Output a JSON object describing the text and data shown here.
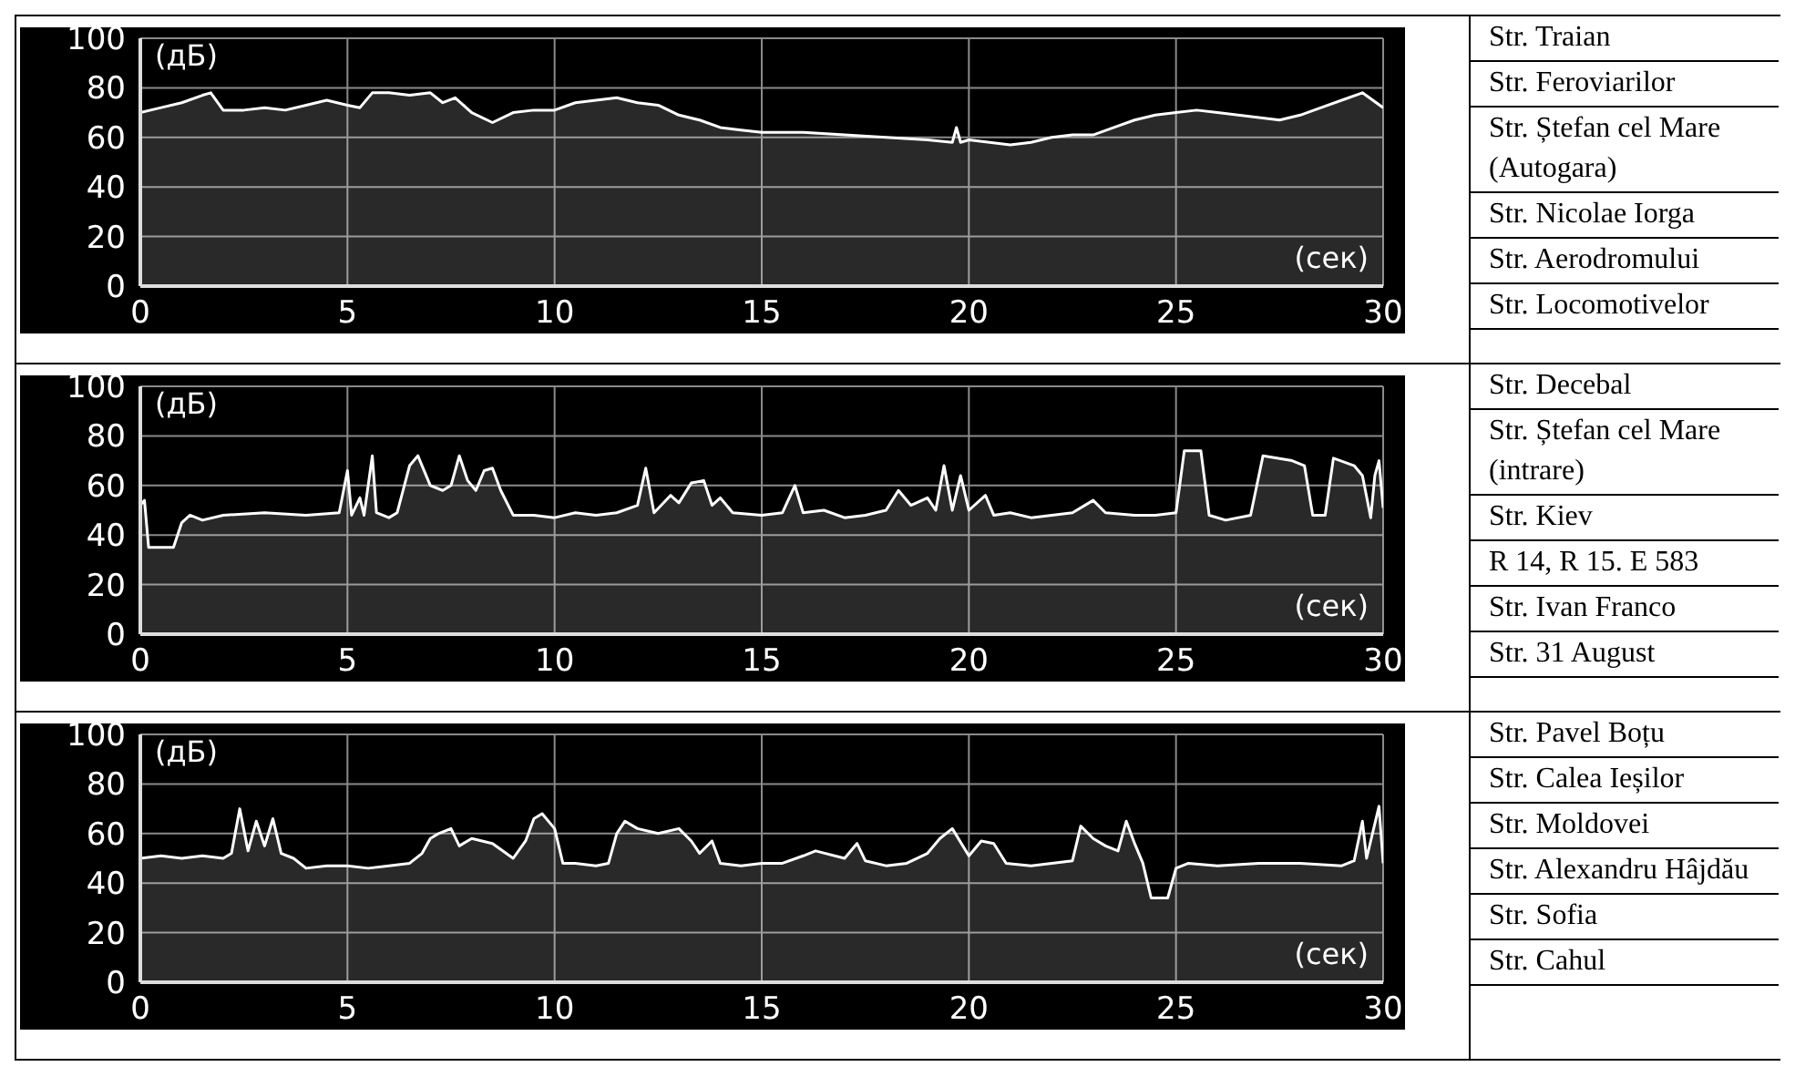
{
  "chart_data": [
    {
      "type": "area",
      "xlabel": "(сек)",
      "ylabel": "(дБ)",
      "color": "#ffffff",
      "grid": true,
      "xlim": [
        0,
        30
      ],
      "xticks": [
        0,
        5,
        10,
        15,
        20,
        25,
        30
      ],
      "ylim": [
        0,
        100
      ],
      "yticks": [
        0,
        20,
        40,
        60,
        80,
        100
      ],
      "x": [
        0,
        0.5,
        1,
        1.5,
        1.7,
        2,
        2.5,
        3,
        3.5,
        4,
        4.5,
        5,
        5.3,
        5.6,
        6,
        6.5,
        7,
        7.3,
        7.6,
        8,
        8.5,
        9,
        9.5,
        10,
        10.5,
        11,
        11.5,
        12,
        12.5,
        13,
        13.5,
        14,
        14.5,
        15,
        16,
        17,
        18,
        19,
        19.6,
        19.7,
        19.8,
        20,
        20.5,
        21,
        21.5,
        22,
        22.5,
        23,
        23.5,
        24,
        24.5,
        25,
        25.5,
        26,
        26.5,
        27,
        27.5,
        28,
        28.5,
        29,
        29.5,
        30
      ],
      "values": [
        70,
        72,
        74,
        77,
        78,
        71,
        71,
        72,
        71,
        73,
        75,
        73,
        72,
        78,
        78,
        77,
        78,
        74,
        76,
        70,
        66,
        70,
        71,
        71,
        74,
        75,
        76,
        74,
        73,
        69,
        67,
        64,
        63,
        62,
        62,
        61,
        60,
        59,
        58,
        64,
        58,
        59,
        58,
        57,
        58,
        60,
        61,
        61,
        64,
        67,
        69,
        70,
        71,
        70,
        69,
        68,
        67,
        69,
        72,
        75,
        78,
        72
      ]
    },
    {
      "type": "other",
      "annotations": [
        "Str. Traian",
        "Str. Feroviarilor",
        "Str. Ștefan cel Mare (Autogara)",
        "Str. Nicolae Iorga",
        "Str. Aerodromului",
        "Str. Locomotivelor"
      ]
    },
    {
      "type": "area",
      "xlabel": "(сек)",
      "ylabel": "(дБ)",
      "color": "#ffffff",
      "grid": true,
      "xlim": [
        0,
        30
      ],
      "xticks": [
        0,
        5,
        10,
        15,
        20,
        25,
        30
      ],
      "ylim": [
        0,
        100
      ],
      "yticks": [
        0,
        20,
        40,
        60,
        80,
        100
      ],
      "x": [
        0,
        0.1,
        0.2,
        0.8,
        1,
        1.2,
        1.5,
        2,
        3,
        4,
        4.8,
        5,
        5.1,
        5.3,
        5.4,
        5.6,
        5.7,
        6,
        6.2,
        6.5,
        6.7,
        7,
        7.3,
        7.5,
        7.7,
        7.9,
        8.1,
        8.3,
        8.5,
        8.7,
        9,
        9.5,
        10,
        10.5,
        11,
        11.5,
        12,
        12.2,
        12.4,
        12.8,
        13,
        13.3,
        13.6,
        13.8,
        14,
        14.3,
        15,
        15.5,
        15.8,
        16,
        16.5,
        17,
        17.5,
        18,
        18.3,
        18.6,
        19,
        19.2,
        19.4,
        19.6,
        19.8,
        20,
        20.4,
        20.6,
        21,
        21.5,
        22,
        22.5,
        23,
        23.3,
        24,
        24.5,
        25,
        25.2,
        25.6,
        25.8,
        26.2,
        26.8,
        27.1,
        27.8,
        28.1,
        28.3,
        28.6,
        28.8,
        29.3,
        29.5,
        29.7,
        29.8,
        29.9,
        30
      ],
      "values": [
        52,
        54,
        35,
        35,
        45,
        48,
        46,
        48,
        49,
        48,
        49,
        66,
        48,
        55,
        48,
        72,
        49,
        47,
        49,
        68,
        72,
        60,
        58,
        60,
        72,
        62,
        58,
        66,
        67,
        58,
        48,
        48,
        47,
        49,
        48,
        49,
        52,
        67,
        49,
        56,
        53,
        61,
        62,
        52,
        55,
        49,
        48,
        49,
        60,
        49,
        50,
        47,
        48,
        50,
        58,
        52,
        55,
        50,
        68,
        50,
        64,
        50,
        56,
        48,
        49,
        47,
        48,
        49,
        54,
        49,
        48,
        48,
        49,
        74,
        74,
        48,
        46,
        48,
        72,
        70,
        68,
        48,
        48,
        71,
        68,
        64,
        47,
        64,
        70,
        51
      ]
    },
    {
      "type": "other",
      "annotations": [
        "Str. Decebal",
        "Str. Ștefan cel Mare (intrare)",
        "Str. Kiev",
        "R 14, R 15. E 583",
        "Str. Ivan Franco",
        "Str. 31 August"
      ]
    },
    {
      "type": "area",
      "xlabel": "(сек)",
      "ylabel": "(дБ)",
      "color": "#ffffff",
      "grid": true,
      "xlim": [
        0,
        30
      ],
      "xticks": [
        0,
        5,
        10,
        15,
        20,
        25,
        30
      ],
      "ylim": [
        0,
        100
      ],
      "yticks": [
        0,
        20,
        40,
        60,
        80,
        100
      ],
      "x": [
        0,
        0.5,
        1,
        1.5,
        2,
        2.2,
        2.4,
        2.6,
        2.8,
        3,
        3.2,
        3.4,
        3.7,
        4,
        4.5,
        5,
        5.5,
        6,
        6.5,
        6.8,
        7,
        7.2,
        7.5,
        7.7,
        8,
        8.5,
        9,
        9.3,
        9.5,
        9.7,
        10,
        10.2,
        10.5,
        11,
        11.3,
        11.5,
        11.7,
        12,
        12.5,
        13,
        13.3,
        13.5,
        13.8,
        14,
        14.5,
        15,
        15.5,
        16,
        16.3,
        17,
        17.3,
        17.5,
        18,
        18.5,
        19,
        19.3,
        19.6,
        20,
        20.3,
        20.6,
        20.9,
        21.5,
        22,
        22.5,
        22.7,
        23,
        23.3,
        23.6,
        23.8,
        24,
        24.2,
        24.4,
        24.8,
        25,
        25.3,
        26,
        27,
        28,
        29,
        29.3,
        29.5,
        29.6,
        29.9,
        30
      ],
      "values": [
        50,
        51,
        50,
        51,
        50,
        52,
        70,
        53,
        65,
        55,
        66,
        52,
        50,
        46,
        47,
        47,
        46,
        47,
        48,
        52,
        58,
        60,
        62,
        55,
        58,
        56,
        50,
        57,
        66,
        68,
        62,
        48,
        48,
        47,
        48,
        60,
        65,
        62,
        60,
        62,
        57,
        52,
        57,
        48,
        47,
        48,
        48,
        51,
        53,
        50,
        56,
        49,
        47,
        48,
        52,
        58,
        62,
        51,
        57,
        56,
        48,
        47,
        48,
        49,
        63,
        58,
        55,
        53,
        65,
        56,
        48,
        34,
        34,
        46,
        48,
        47,
        48,
        48,
        47,
        49,
        65,
        50,
        71,
        48
      ]
    },
    {
      "type": "other",
      "annotations": [
        "Str. Pavel Boțu",
        "Str. Calea Ieșilor",
        "Str. Moldovei",
        "Str. Alexandru Hâjdău",
        "Str. Sofia",
        "Str. Cahul"
      ]
    }
  ]
}
